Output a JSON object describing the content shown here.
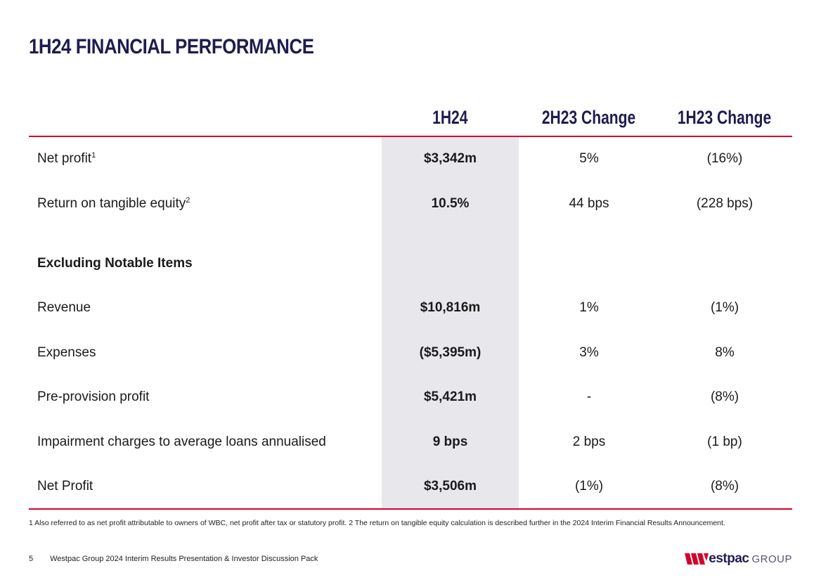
{
  "page": {
    "title": "1H24 FINANCIAL PERFORMANCE"
  },
  "table": {
    "headers": [
      "1H24",
      "2H23 Change",
      "1H23 Change"
    ],
    "rows_top": [
      {
        "label": "Net profit",
        "sup": "1",
        "v1h24": "$3,342m",
        "v2h23": "5%",
        "v1h23": "(16%)"
      },
      {
        "label": "Return on tangible equity",
        "sup": "2",
        "v1h24": "10.5%",
        "v2h23": "44 bps",
        "v1h23": "(228 bps)"
      }
    ],
    "section_heading": "Excluding Notable Items",
    "rows_bottom": [
      {
        "label": "Revenue",
        "v1h24": "$10,816m",
        "v2h23": "1%",
        "v1h23": "(1%)"
      },
      {
        "label": "Expenses",
        "v1h24": "($5,395m)",
        "v2h23": "3%",
        "v1h23": "8%"
      },
      {
        "label": "Pre-provision profit",
        "v1h24": "$5,421m",
        "v2h23": "-",
        "v1h23": "(8%)"
      },
      {
        "label": "Impairment charges to average loans annualised",
        "v1h24": "9 bps",
        "v2h23": "2 bps",
        "v1h23": "(1 bp)"
      },
      {
        "label": "Net Profit",
        "v1h24": "$3,506m",
        "v2h23": "(1%)",
        "v1h23": "(8%)"
      }
    ]
  },
  "footnote": "1 Also referred to as net profit attributable to owners of WBC, net profit after tax or statutory profit. 2 The return on tangible equity calculation is described further in the 2024 Interim Financial Results Announcement.",
  "footer": {
    "page_number": "5",
    "text": "Westpac Group 2024 Interim Results Presentation & Investor Discussion Pack"
  },
  "logo": {
    "brand": "estpac",
    "group": "GROUP"
  },
  "colors": {
    "accent_red": "#d5002b",
    "navy": "#1f1c4f",
    "column_shade": "#e8e7ec"
  }
}
